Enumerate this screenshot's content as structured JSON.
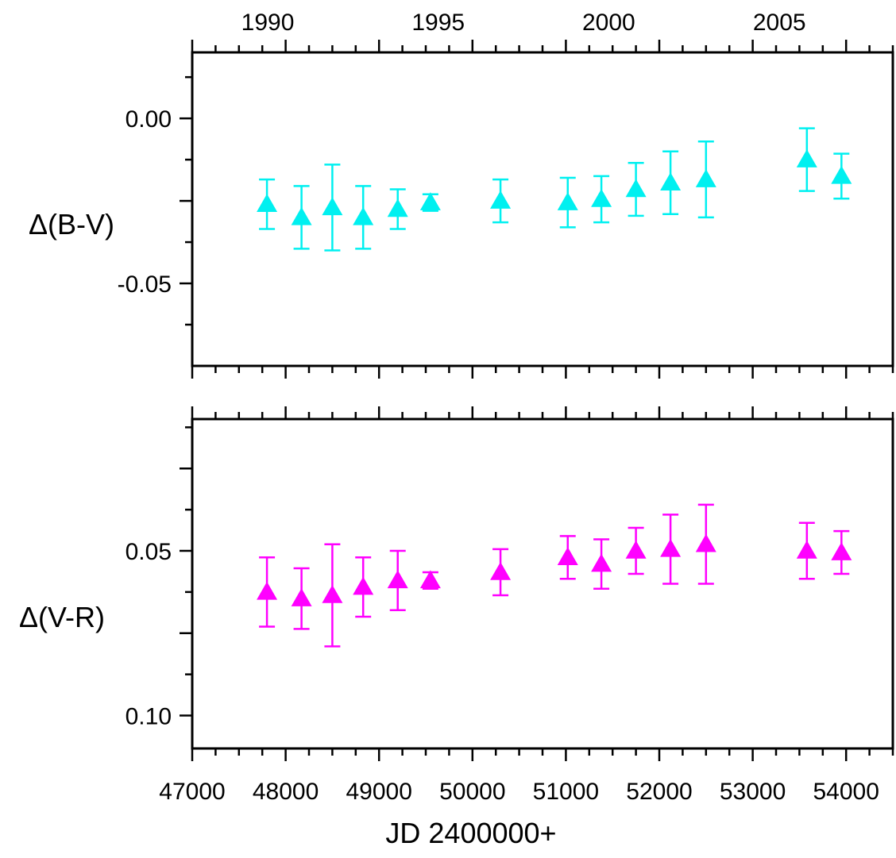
{
  "chart_data": [
    {
      "type": "scatter",
      "panel": "top",
      "ylabel": "Δ(B-V)",
      "xlim": [
        47000,
        54500
      ],
      "ylim": [
        0.02,
        -0.075
      ],
      "y_inverted": true,
      "color": "#00f0f0",
      "marker": "triangle-up",
      "top_axis": {
        "tick_labels": [
          "1990",
          "1995",
          "2000",
          "2005"
        ],
        "tick_jd": [
          47893,
          49719,
          51544,
          53371
        ]
      },
      "y_ticks": [
        -0.05,
        0.0
      ],
      "y_tick_labels": [
        "-0.05",
        "0.00"
      ],
      "points": [
        {
          "x": 47800,
          "y": -0.026,
          "err": 0.0075
        },
        {
          "x": 48170,
          "y": -0.03,
          "err": 0.0095
        },
        {
          "x": 48500,
          "y": -0.027,
          "err": 0.013
        },
        {
          "x": 48830,
          "y": -0.03,
          "err": 0.0095
        },
        {
          "x": 49200,
          "y": -0.0275,
          "err": 0.006
        },
        {
          "x": 49550,
          "y": -0.0255,
          "err": 0.0025
        },
        {
          "x": 50300,
          "y": -0.025,
          "err": 0.0065
        },
        {
          "x": 51020,
          "y": -0.0255,
          "err": 0.0075
        },
        {
          "x": 51380,
          "y": -0.0245,
          "err": 0.007
        },
        {
          "x": 51750,
          "y": -0.0215,
          "err": 0.008
        },
        {
          "x": 52120,
          "y": -0.0195,
          "err": 0.0095
        },
        {
          "x": 52500,
          "y": -0.0185,
          "err": 0.0115
        },
        {
          "x": 53580,
          "y": -0.0125,
          "err": 0.0095
        },
        {
          "x": 53950,
          "y": -0.0175,
          "err": 0.0068
        }
      ]
    },
    {
      "type": "scatter",
      "panel": "bottom",
      "ylabel": "Δ(V-R)",
      "xlabel": "JD 2400000+",
      "xlim": [
        47000,
        54500
      ],
      "ylim": [
        0.01,
        0.11
      ],
      "y_inverted": true,
      "color": "#ff00ff",
      "marker": "triangle-up",
      "x_ticks": [
        47000,
        48000,
        49000,
        50000,
        51000,
        52000,
        53000,
        54000
      ],
      "x_tick_labels": [
        "47000",
        "48000",
        "49000",
        "50000",
        "51000",
        "52000",
        "53000",
        "54000"
      ],
      "y_ticks": [
        0.05,
        0.1
      ],
      "y_tick_labels": [
        "0.05",
        "0.10"
      ],
      "points": [
        {
          "x": 47800,
          "y": 0.0625,
          "err": 0.0105
        },
        {
          "x": 48170,
          "y": 0.0645,
          "err": 0.0092
        },
        {
          "x": 48500,
          "y": 0.0635,
          "err": 0.0155
        },
        {
          "x": 48830,
          "y": 0.061,
          "err": 0.009
        },
        {
          "x": 49200,
          "y": 0.059,
          "err": 0.009
        },
        {
          "x": 49550,
          "y": 0.059,
          "err": 0.0025
        },
        {
          "x": 50300,
          "y": 0.0565,
          "err": 0.007
        },
        {
          "x": 51020,
          "y": 0.052,
          "err": 0.0065
        },
        {
          "x": 51380,
          "y": 0.054,
          "err": 0.0075
        },
        {
          "x": 51750,
          "y": 0.05,
          "err": 0.007
        },
        {
          "x": 52120,
          "y": 0.0495,
          "err": 0.0105
        },
        {
          "x": 52500,
          "y": 0.048,
          "err": 0.012
        },
        {
          "x": 53580,
          "y": 0.05,
          "err": 0.0085
        },
        {
          "x": 53950,
          "y": 0.0505,
          "err": 0.0065
        }
      ]
    }
  ]
}
